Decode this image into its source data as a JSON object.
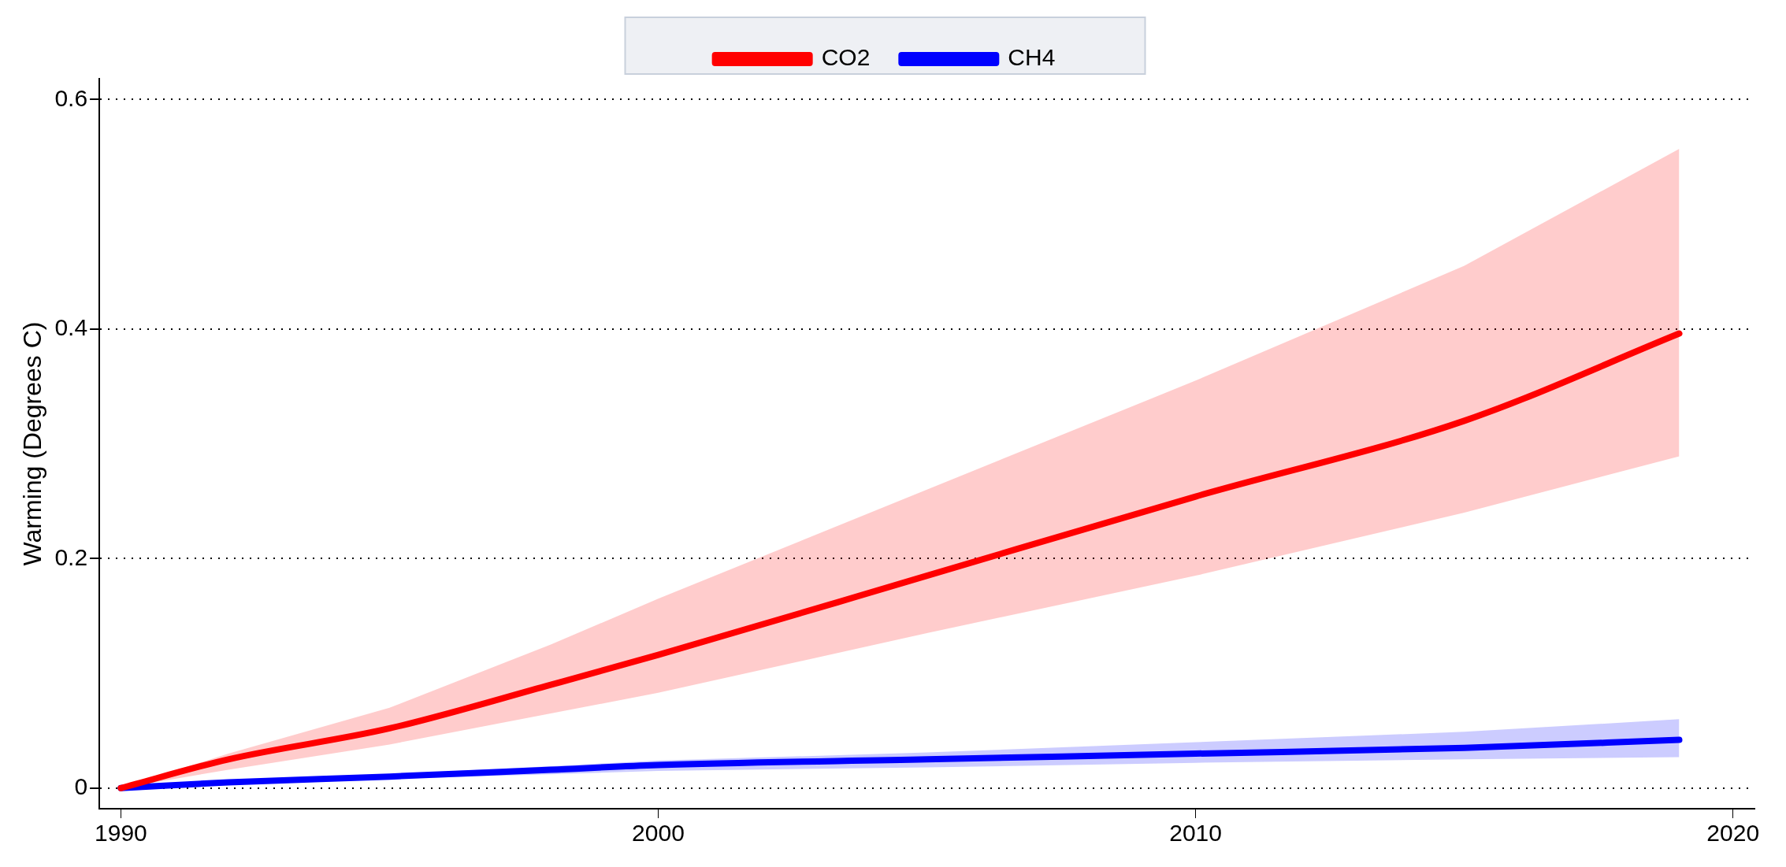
{
  "chart_data": {
    "type": "line",
    "ylabel": "Warming (Degrees C)",
    "xlim": [
      1989.6,
      2020.4
    ],
    "xticks": [
      1990,
      2000,
      2010,
      2020
    ],
    "ylim": [
      -0.018,
      0.618
    ],
    "yticks": [
      0,
      0.2,
      0.4,
      0.6
    ],
    "grid": "y",
    "legend": "top",
    "line_style": "solid",
    "marker": "none",
    "x": [
      1990,
      1992,
      1995,
      1998,
      2000,
      2005,
      2010,
      2015,
      2019
    ],
    "series": [
      {
        "name": "CO2",
        "color": "#ff0000",
        "values": [
          0,
          0.025,
          0.052,
          0.09,
          0.116,
          0.185,
          0.254,
          0.32,
          0.396
        ],
        "lower": [
          0,
          0.016,
          0.038,
          0.065,
          0.083,
          0.135,
          0.185,
          0.24,
          0.289
        ],
        "upper": [
          0,
          0.03,
          0.07,
          0.125,
          0.165,
          0.26,
          0.355,
          0.455,
          0.557
        ]
      },
      {
        "name": "CH4",
        "color": "#0000ff",
        "values": [
          0,
          0.005,
          0.01,
          0.016,
          0.02,
          0.025,
          0.03,
          0.035,
          0.042
        ],
        "lower": [
          0,
          0.004,
          0.008,
          0.012,
          0.015,
          0.018,
          0.022,
          0.025,
          0.027
        ],
        "upper": [
          0,
          0.006,
          0.012,
          0.019,
          0.024,
          0.031,
          0.04,
          0.049,
          0.06
        ]
      }
    ]
  }
}
